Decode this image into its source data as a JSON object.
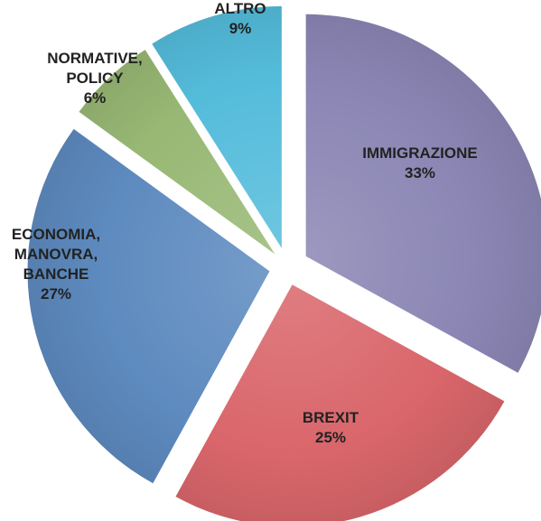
{
  "chart_data": {
    "type": "pie",
    "exploded": true,
    "title": "",
    "slices": [
      {
        "label": [
          "IMMIGRAZIONE"
        ],
        "value": 33,
        "value_label": "33%",
        "color": "#8B86B4"
      },
      {
        "label": [
          "BREXIT"
        ],
        "value": 25,
        "value_label": "25%",
        "color": "#D9666B"
      },
      {
        "label": [
          "ECONOMIA,",
          "MANOVRA,",
          "BANCHE"
        ],
        "value": 27,
        "value_label": "27%",
        "color": "#5D8ABF"
      },
      {
        "label": [
          "NORMATIVE,",
          "POLICY"
        ],
        "value": 6,
        "value_label": "6%",
        "color": "#98B874"
      },
      {
        "label": [
          "ALTRO"
        ],
        "value": 9,
        "value_label": "9%",
        "color": "#54BCDB"
      }
    ]
  }
}
